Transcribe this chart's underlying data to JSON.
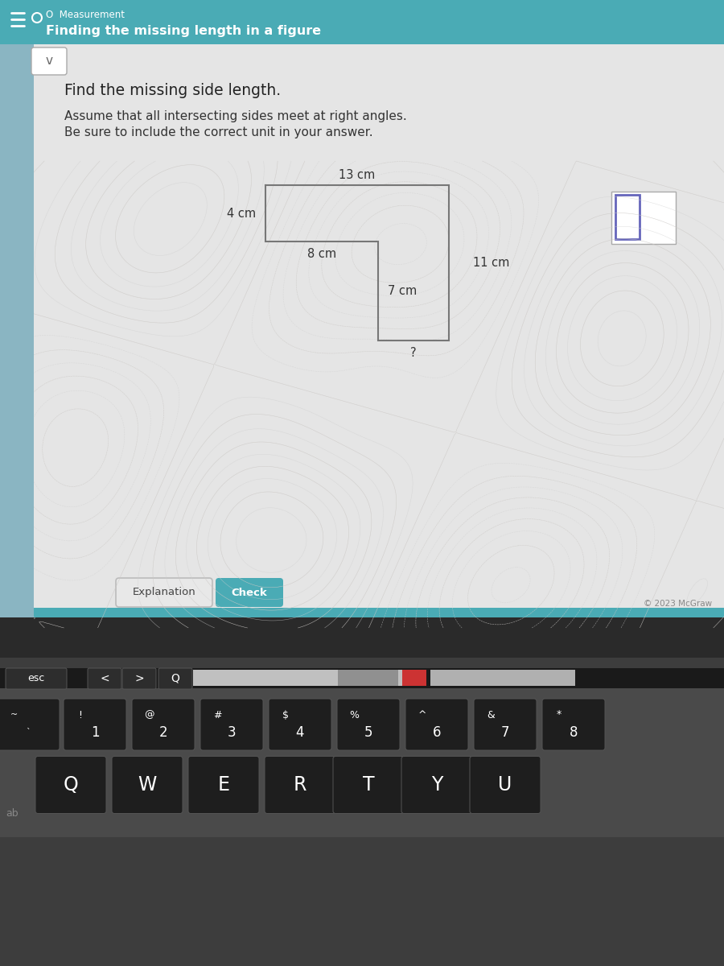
{
  "title_bar_color": "#4aabb5",
  "title_bar_text1": "O  Measurement",
  "title_bar_text2": "Finding the missing length in a figure",
  "left_panel_color": "#7ab5c0",
  "content_bg": "#e8e8e8",
  "question_line1": "Find the missing side length.",
  "question_line2": "Assume that all intersecting sides meet at right angles.",
  "question_line3": "Be sure to include the correct unit in your answer.",
  "shape_labels": {
    "top": "13 cm",
    "left_top": "4 cm",
    "middle_horiz": "8 cm",
    "middle_vert": "7 cm",
    "right": "11 cm",
    "bottom": "?"
  },
  "button1_text": "Explanation",
  "button2_text": "Check",
  "button1_color": "#e8e8e8",
  "button2_color": "#4aabb5",
  "copyright": "© 2023 McGraw",
  "keyboard_bg": "#3a3a3a",
  "shape_line_color": "#777777",
  "text_color": "#333333",
  "answer_box_border": "#6666bb",
  "screen_bottom_bar": "#4aabb5"
}
